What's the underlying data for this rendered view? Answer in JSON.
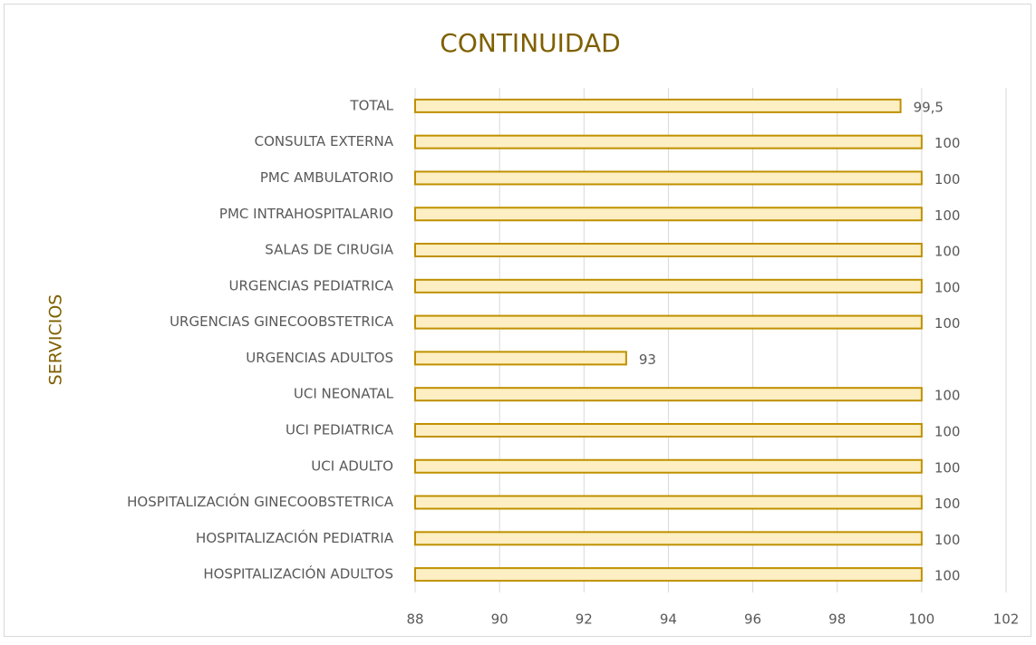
{
  "chart_data": {
    "type": "bar",
    "orientation": "horizontal",
    "title": "CONTINUIDAD",
    "y_label": "SERVICIOS",
    "categories": [
      "TOTAL",
      "CONSULTA EXTERNA",
      "PMC AMBULATORIO",
      "PMC INTRAHOSPITALARIO",
      "SALAS DE CIRUGIA",
      "URGENCIAS PEDIATRICA",
      "URGENCIAS GINECOOBSTETRICA",
      "URGENCIAS ADULTOS",
      "UCI NEONATAL",
      "UCI PEDIATRICA",
      "UCI ADULTO",
      "HOSPITALIZACIÓN GINECOOBSTETRICA",
      "HOSPITALIZACIÓN PEDIATRIA",
      "HOSPITALIZACIÓN ADULTOS"
    ],
    "values": [
      99.5,
      100,
      100,
      100,
      100,
      100,
      100,
      93,
      100,
      100,
      100,
      100,
      100,
      100
    ],
    "value_labels": [
      "99,5",
      "100",
      "100",
      "100",
      "100",
      "100",
      "100",
      "93",
      "100",
      "100",
      "100",
      "100",
      "100",
      "100"
    ],
    "color": "#fdefc3",
    "edge_color": "#bf9000",
    "xlim": [
      88,
      102
    ],
    "xticks": [
      88,
      90,
      92,
      94,
      96,
      98,
      100,
      102
    ],
    "grid": true
  }
}
